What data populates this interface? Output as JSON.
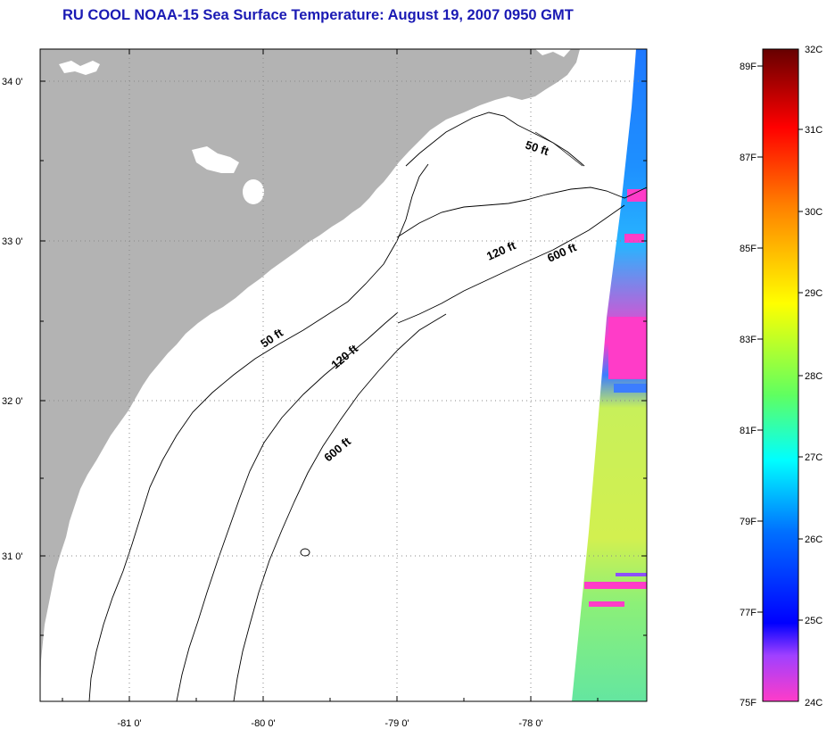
{
  "title": "RU COOL  NOAA-15  Sea Surface Temperature:  August 19, 2007 0950 GMT",
  "map": {
    "lat_labels": [
      "34 0'",
      "33 0'",
      "32 0'",
      "31 0'"
    ],
    "lon_labels": [
      "-81 0'",
      "-80 0'",
      "-79 0'",
      "-78 0'"
    ],
    "isobaths": [
      {
        "id": "50ft-north",
        "text": "50 ft"
      },
      {
        "id": "120ft-north",
        "text": "120 ft"
      },
      {
        "id": "600ft-north",
        "text": "600 ft"
      },
      {
        "id": "50ft-south",
        "text": "50 ft"
      },
      {
        "id": "120ft-south",
        "text": "120 ft"
      },
      {
        "id": "600ft-south",
        "text": "600 ft"
      }
    ],
    "colors": {
      "land": "#b3b3b3",
      "ocean": "#ffffff",
      "grid": "#888888"
    }
  },
  "colorbar": {
    "fahrenheit_labels": [
      "89F",
      "87F",
      "85F",
      "83F",
      "81F",
      "79F",
      "77F",
      "75F"
    ],
    "celsius_labels": [
      "32C",
      "31C",
      "30C",
      "29C",
      "28C",
      "27C",
      "26C",
      "25C",
      "24C"
    ],
    "gradient_stops": [
      {
        "color": "#660000"
      },
      {
        "color": "#ff0000"
      },
      {
        "color": "#ff8000"
      },
      {
        "color": "#ffff00"
      },
      {
        "color": "#60ff60"
      },
      {
        "color": "#00ffff"
      },
      {
        "color": "#0070ff"
      },
      {
        "color": "#0000ff"
      },
      {
        "color": "#a040ff"
      },
      {
        "color": "#ff3cc8"
      }
    ]
  }
}
